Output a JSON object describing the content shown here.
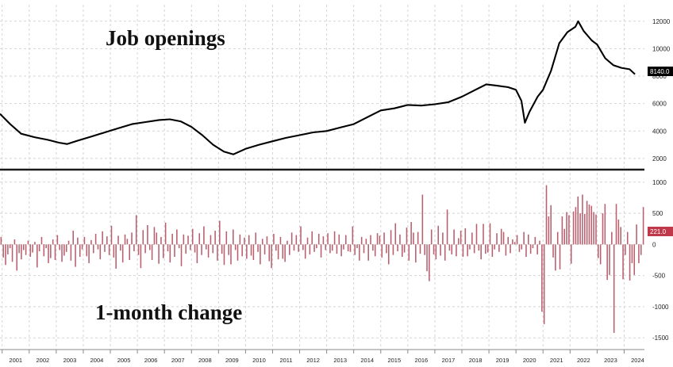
{
  "chart_data": [
    {
      "type": "line",
      "title": "Job openings",
      "ylim": [
        1300,
        13200
      ],
      "yticks": [
        2000,
        4000,
        6000,
        8000,
        10000,
        12000
      ],
      "ytick_labels": [
        "2000",
        "4000",
        "6000",
        "8000",
        "10000",
        "12000"
      ],
      "grid": true,
      "last_value_label": "8140.0",
      "last_value_badge_color": "#000000",
      "series": [
        {
          "color": "#000000",
          "points": [
            [
              2000.92,
              5250
            ],
            [
              2001.3,
              4500
            ],
            [
              2001.7,
              3800
            ],
            [
              2002.2,
              3550
            ],
            [
              2002.7,
              3350
            ],
            [
              2003.1,
              3150
            ],
            [
              2003.4,
              3050
            ],
            [
              2003.8,
              3300
            ],
            [
              2004.3,
              3600
            ],
            [
              2004.8,
              3900
            ],
            [
              2005.3,
              4200
            ],
            [
              2005.8,
              4500
            ],
            [
              2006.3,
              4650
            ],
            [
              2006.8,
              4800
            ],
            [
              2007.2,
              4850
            ],
            [
              2007.6,
              4700
            ],
            [
              2008.0,
              4300
            ],
            [
              2008.4,
              3700
            ],
            [
              2008.8,
              3000
            ],
            [
              2009.2,
              2500
            ],
            [
              2009.55,
              2300
            ],
            [
              2010.0,
              2700
            ],
            [
              2010.5,
              3000
            ],
            [
              2011.0,
              3250
            ],
            [
              2011.5,
              3500
            ],
            [
              2012.0,
              3700
            ],
            [
              2012.5,
              3900
            ],
            [
              2013.0,
              4000
            ],
            [
              2013.5,
              4250
            ],
            [
              2014.0,
              4500
            ],
            [
              2014.5,
              5000
            ],
            [
              2015.0,
              5500
            ],
            [
              2015.5,
              5650
            ],
            [
              2016.0,
              5900
            ],
            [
              2016.5,
              5850
            ],
            [
              2017.0,
              5950
            ],
            [
              2017.5,
              6100
            ],
            [
              2018.0,
              6500
            ],
            [
              2018.5,
              7000
            ],
            [
              2018.9,
              7400
            ],
            [
              2019.3,
              7300
            ],
            [
              2019.7,
              7200
            ],
            [
              2020.0,
              7000
            ],
            [
              2020.2,
              6200
            ],
            [
              2020.33,
              4600
            ],
            [
              2020.5,
              5400
            ],
            [
              2020.8,
              6500
            ],
            [
              2021.0,
              7000
            ],
            [
              2021.3,
              8400
            ],
            [
              2021.6,
              10400
            ],
            [
              2021.9,
              11200
            ],
            [
              2022.2,
              11600
            ],
            [
              2022.3,
              12000
            ],
            [
              2022.5,
              11300
            ],
            [
              2022.8,
              10600
            ],
            [
              2023.0,
              10300
            ],
            [
              2023.3,
              9300
            ],
            [
              2023.6,
              8800
            ],
            [
              2023.9,
              8600
            ],
            [
              2024.2,
              8500
            ],
            [
              2024.4,
              8140
            ]
          ]
        }
      ]
    },
    {
      "type": "bar",
      "title": "1-month change",
      "ylim": [
        -1650,
        1150
      ],
      "yticks": [
        -1500,
        -1000,
        -500,
        0,
        500,
        1000
      ],
      "ytick_labels": [
        "-1500",
        "-1000",
        "-500",
        "0",
        "500",
        "1000"
      ],
      "grid": true,
      "last_value_label": "221.0",
      "last_value_badge_color": "#c0394b",
      "bar_color": "#b8606e",
      "x_start": 2000.96,
      "x_step": 0.08333,
      "values": [
        120,
        -210,
        -330,
        -160,
        -60,
        -280,
        80,
        -420,
        -140,
        -240,
        -90,
        -170,
        60,
        -200,
        -130,
        40,
        -370,
        -110,
        120,
        -190,
        -60,
        -300,
        -220,
        80,
        -250,
        150,
        -90,
        -280,
        -180,
        -120,
        60,
        -260,
        220,
        -360,
        110,
        -200,
        -80,
        120,
        -190,
        -300,
        70,
        -140,
        170,
        -80,
        -240,
        210,
        -120,
        130,
        -170,
        300,
        -210,
        -390,
        140,
        -100,
        -290,
        160,
        90,
        -250,
        190,
        -110,
        470,
        -170,
        -380,
        230,
        -140,
        310,
        -90,
        -250,
        280,
        190,
        -310,
        120,
        -220,
        350,
        -110,
        -290,
        170,
        -200,
        240,
        -60,
        -350,
        160,
        -150,
        140,
        -90,
        250,
        -130,
        -300,
        180,
        -170,
        290,
        -80,
        -210,
        150,
        -140,
        220,
        -260,
        380,
        -150,
        -330,
        210,
        -170,
        -320,
        240,
        -90,
        -260,
        160,
        -190,
        110,
        -230,
        150,
        -180,
        -250,
        190,
        -120,
        -320,
        90,
        -160,
        130,
        -270,
        -380,
        170,
        -100,
        -240,
        120,
        -230,
        -280,
        60,
        -170,
        190,
        -100,
        150,
        -120,
        290,
        -90,
        -230,
        110,
        -160,
        210,
        -120,
        -60,
        170,
        -210,
        130,
        -90,
        180,
        -140,
        -100,
        210,
        -150,
        160,
        -190,
        -80,
        150,
        -110,
        -120,
        290,
        -170,
        -60,
        -260,
        120,
        -140,
        90,
        -260,
        150,
        -100,
        -190,
        180,
        140,
        -210,
        190,
        -140,
        -320,
        230,
        -170,
        340,
        -110,
        160,
        -200,
        -130,
        270,
        -260,
        360,
        190,
        -290,
        200,
        -150,
        800,
        -170,
        -430,
        -590,
        240,
        -160,
        -240,
        300,
        -180,
        190,
        -260,
        560,
        -100,
        -160,
        240,
        -190,
        100,
        220,
        -200,
        260,
        -190,
        -80,
        190,
        -140,
        330,
        -100,
        -240,
        330,
        -150,
        -130,
        340,
        -200,
        -80,
        180,
        -120,
        250,
        200,
        -180,
        120,
        -140,
        80,
        40,
        150,
        -120,
        -80,
        200,
        -200,
        160,
        -150,
        -60,
        120,
        -160,
        60,
        -1080,
        -1280,
        950,
        450,
        630,
        -210,
        -420,
        200,
        -400,
        450,
        250,
        520,
        470,
        -310,
        530,
        600,
        770,
        500,
        800,
        490,
        700,
        640,
        620,
        520,
        480,
        -220,
        -320,
        500,
        650,
        -570,
        -490,
        200,
        -1420,
        650,
        400,
        280,
        -560,
        -170,
        200,
        -580,
        -300,
        -490,
        320,
        -300,
        -170,
        600,
        -620,
        -120,
        -540,
        -230,
        220,
        -290,
        -460,
        -440,
        221
      ]
    }
  ],
  "x_axis": {
    "xlim": [
      2000.92,
      2024.75
    ],
    "tick_labels": [
      "2001",
      "2002",
      "2003",
      "2004",
      "2005",
      "2006",
      "2007",
      "2008",
      "2009",
      "2010",
      "2011",
      "2012",
      "2013",
      "2014",
      "2015",
      "2016",
      "2017",
      "2018",
      "2019",
      "2020",
      "2021",
      "2022",
      "2023",
      "2024"
    ]
  }
}
